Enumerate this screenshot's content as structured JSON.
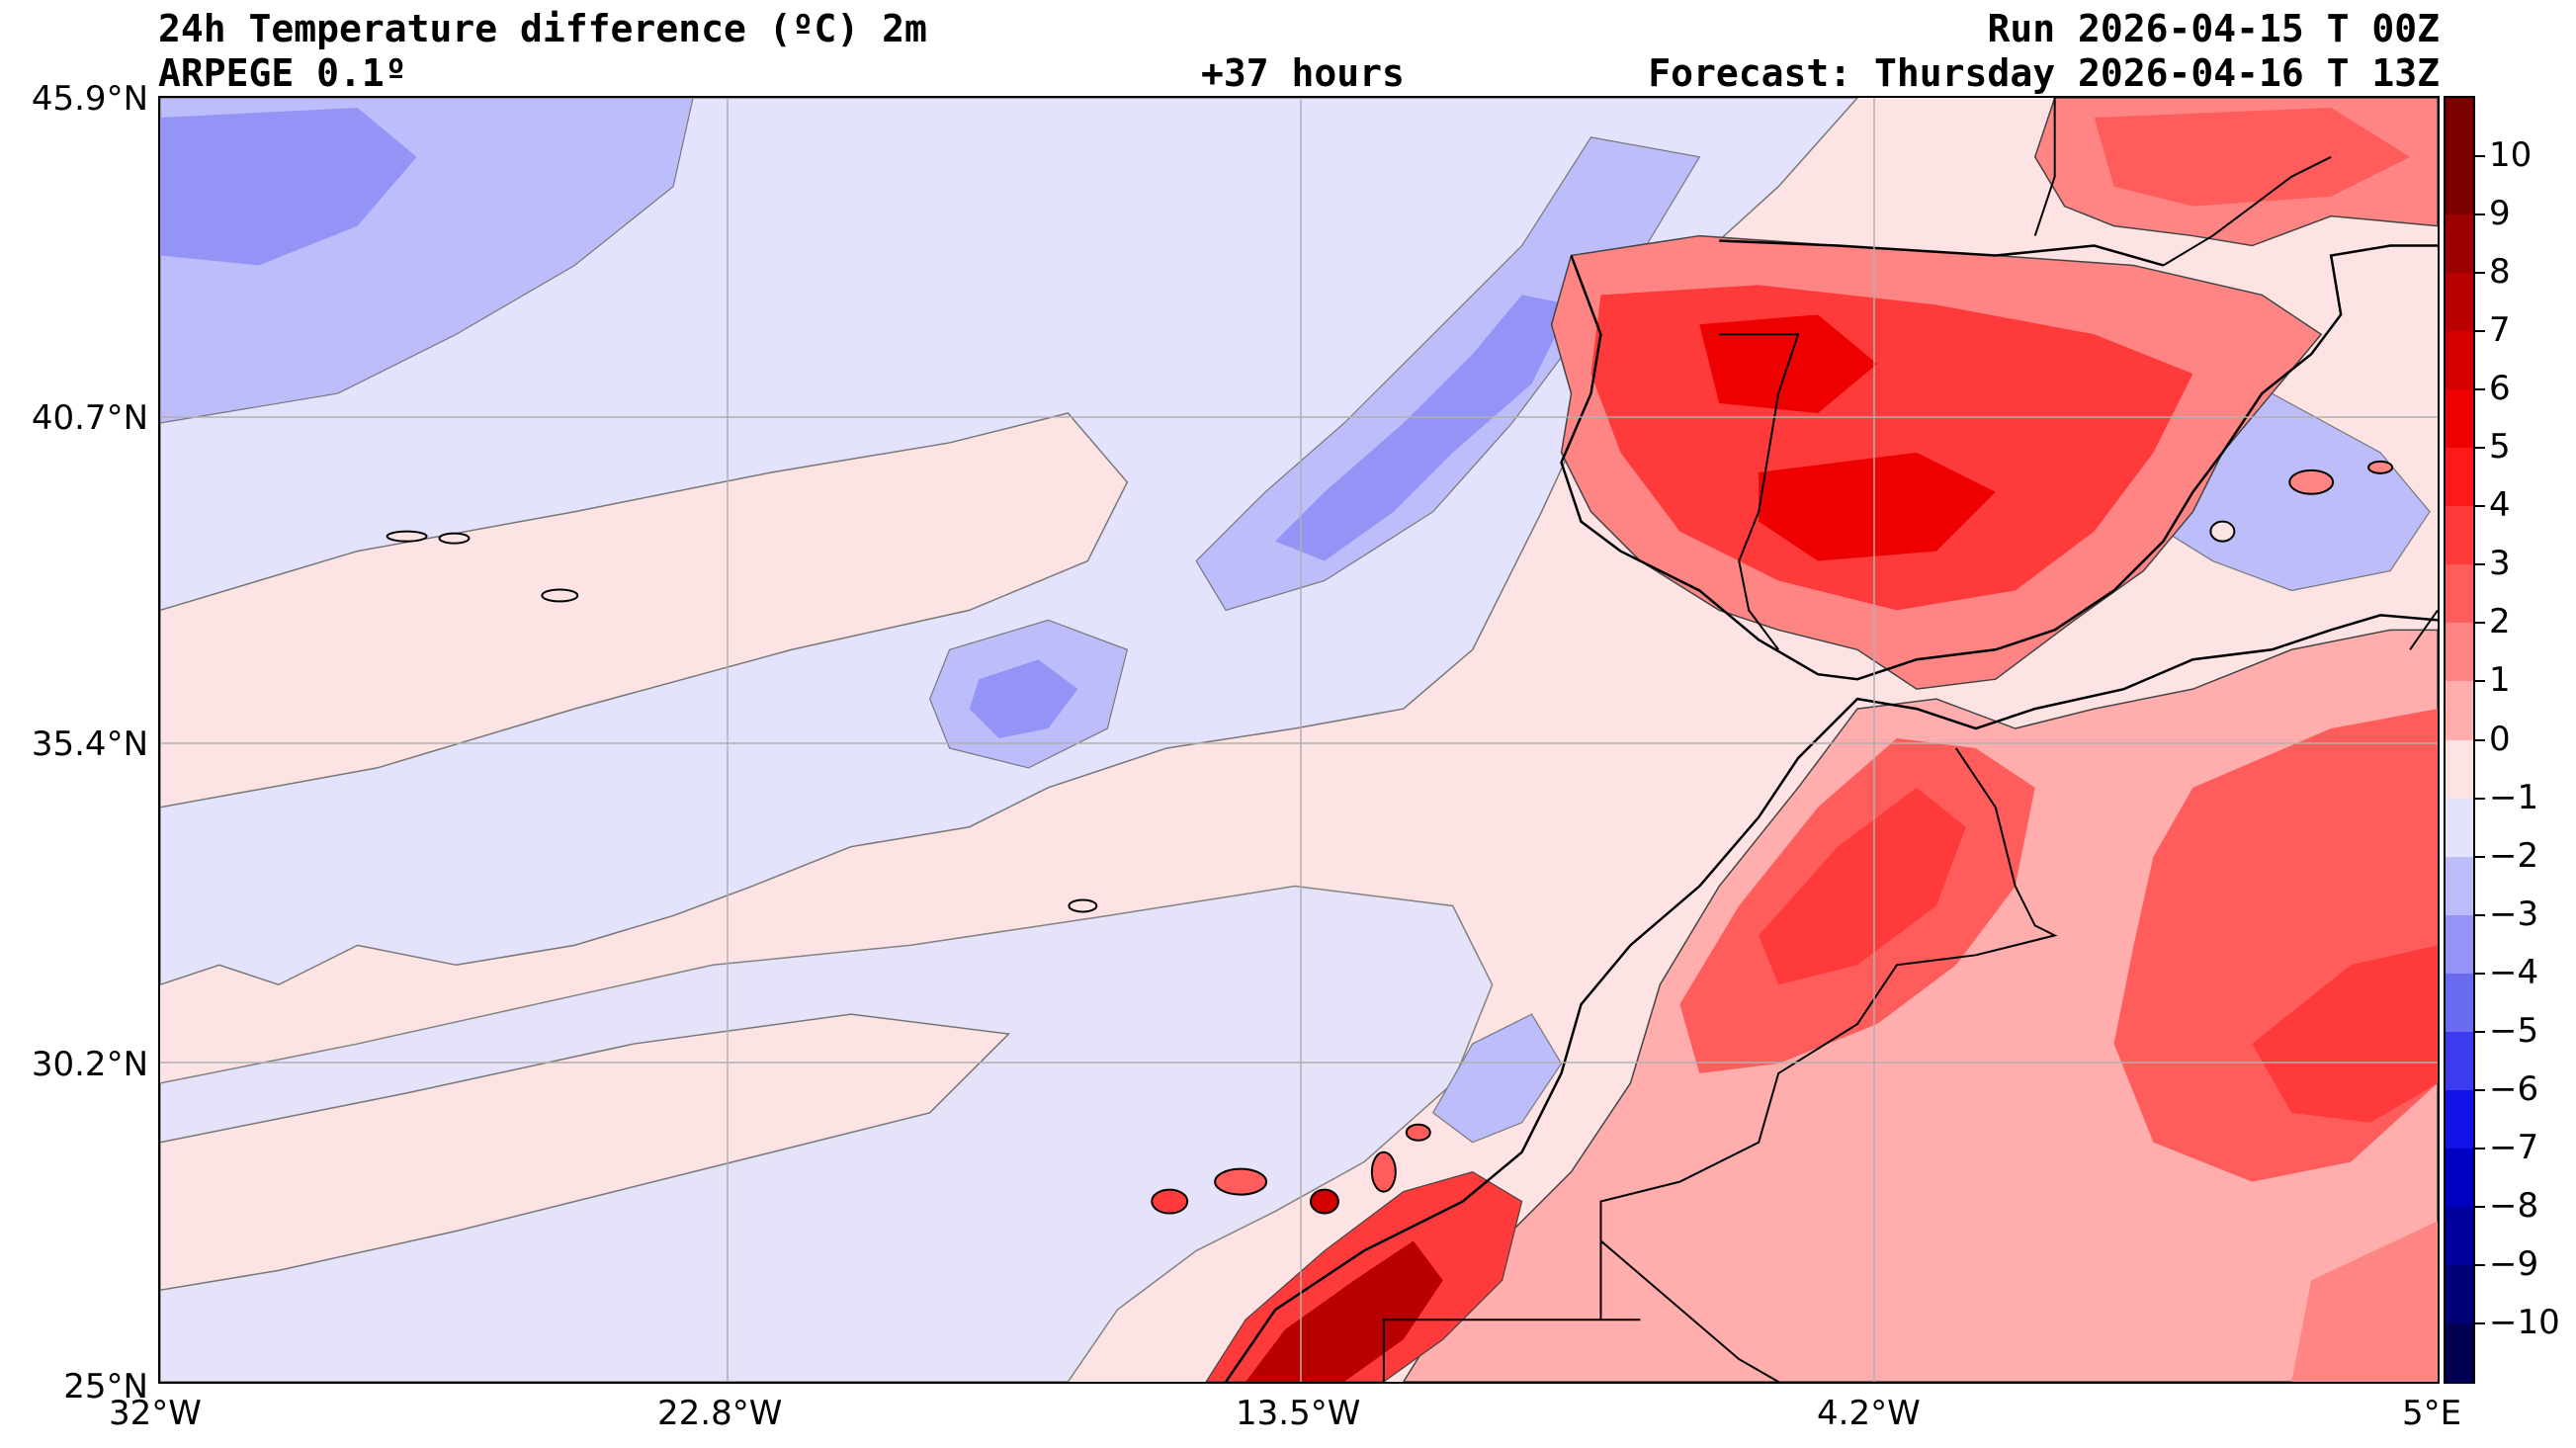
{
  "header": {
    "title": "24h Temperature difference (ºC) 2m",
    "model": "ARPEGE 0.1º",
    "lead": "+37 hours",
    "run": "Run 2026-04-15 T 00Z",
    "forecast": "Forecast: Thursday 2026-04-16 T 13Z"
  },
  "map": {
    "lat_range": [
      25.0,
      45.9
    ],
    "lon_range": [
      -32.0,
      5.0
    ],
    "lat_labels": [
      "45.9°N",
      "40.7°N",
      "35.4°N",
      "30.2°N",
      "25°N"
    ],
    "lon_labels": [
      "32°W",
      "22.8°W",
      "13.5°W",
      "4.2°W",
      "5°E"
    ],
    "ocean_color": "#fde3e3",
    "grid_color": "#b0b0b0",
    "coastline_color": "#000000"
  },
  "colorbar": {
    "labels": [
      "10",
      "9",
      "8",
      "7",
      "6",
      "5",
      "4",
      "3",
      "2",
      "1",
      "0",
      "−1",
      "−2",
      "−3",
      "−4",
      "−5",
      "−6",
      "−7",
      "−8",
      "−9",
      "−10"
    ],
    "colors": [
      "#7a0000",
      "#9c0000",
      "#b80000",
      "#d40000",
      "#ee0000",
      "#ff1a1a",
      "#ff3a3a",
      "#ff5c5c",
      "#ff8585",
      "#ffadad",
      "#fde3e3",
      "#e3e3fd",
      "#bdbdfb",
      "#9494f7",
      "#6b6bf2",
      "#3b3bf0",
      "#1212e6",
      "#0000c2",
      "#00009c",
      "#000078",
      "#000050"
    ]
  }
}
